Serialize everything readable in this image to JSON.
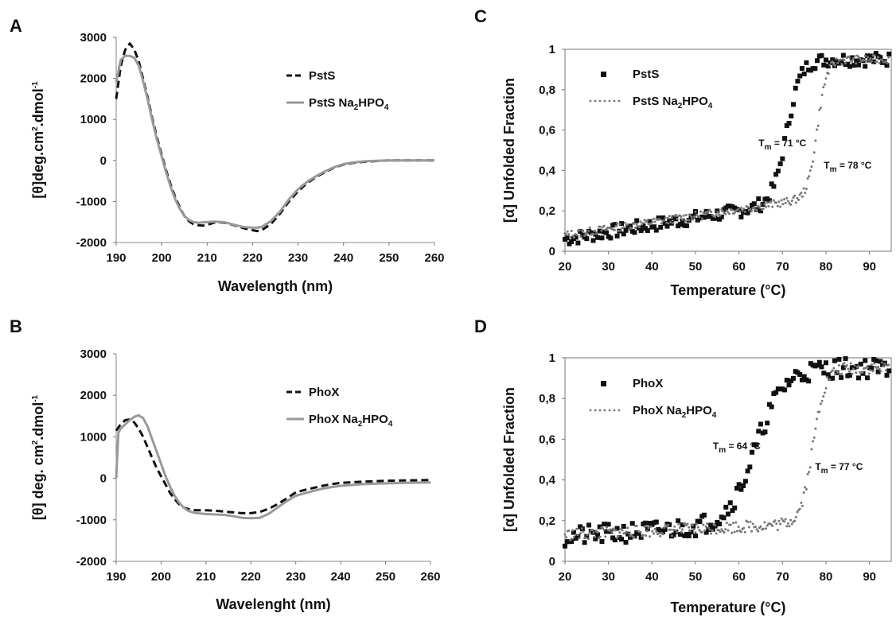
{
  "chart_data": [
    {
      "panel": "A",
      "type": "line",
      "xlabel": "Wavelength  (nm)",
      "ylabel": [
        "[θ]deg.cm",
        "2",
        ".dmol",
        "-1"
      ],
      "xlim": [
        190,
        260
      ],
      "ylim": [
        -2000,
        3000
      ],
      "xticks": [
        190,
        200,
        210,
        220,
        230,
        240,
        250,
        260
      ],
      "yticks": [
        3000,
        2000,
        1000,
        0,
        -1000,
        -2000
      ],
      "grid": false,
      "legend_position": "top-right",
      "series": [
        {
          "name": "PstS",
          "style": "dashed",
          "color": "#111111",
          "x": [
            190,
            191,
            192,
            193,
            194,
            195,
            196,
            197,
            198,
            199,
            200,
            201,
            202,
            203,
            204,
            205,
            206,
            207,
            208,
            209,
            210,
            212,
            214,
            216,
            218,
            220,
            221,
            222,
            224,
            226,
            228,
            230,
            232,
            234,
            236,
            238,
            240,
            242,
            245,
            248,
            250,
            255,
            260
          ],
          "y": [
            1500,
            2300,
            2700,
            2850,
            2700,
            2400,
            1950,
            1500,
            1000,
            550,
            150,
            -250,
            -600,
            -900,
            -1150,
            -1350,
            -1480,
            -1550,
            -1580,
            -1590,
            -1570,
            -1500,
            -1520,
            -1580,
            -1650,
            -1700,
            -1720,
            -1700,
            -1550,
            -1300,
            -1000,
            -750,
            -550,
            -400,
            -280,
            -170,
            -100,
            -60,
            -30,
            -10,
            0,
            0,
            0
          ]
        },
        {
          "name": "PstS Na",
          "name_sub": "2",
          "name_suffix": "HPO",
          "name_sub2": "4",
          "style": "solid",
          "color": "#999999",
          "x": [
            190,
            191,
            192,
            193,
            194,
            195,
            196,
            197,
            198,
            199,
            200,
            201,
            202,
            203,
            204,
            205,
            206,
            207,
            208,
            209,
            210,
            212,
            214,
            216,
            218,
            220,
            221,
            222,
            224,
            226,
            228,
            230,
            232,
            234,
            236,
            238,
            240,
            242,
            245,
            248,
            250,
            255,
            260
          ],
          "y": [
            1900,
            2450,
            2550,
            2550,
            2500,
            2300,
            1900,
            1450,
            950,
            500,
            100,
            -300,
            -650,
            -950,
            -1180,
            -1350,
            -1450,
            -1500,
            -1520,
            -1510,
            -1500,
            -1490,
            -1510,
            -1570,
            -1620,
            -1640,
            -1640,
            -1620,
            -1480,
            -1250,
            -950,
            -700,
            -520,
            -380,
            -260,
            -160,
            -90,
            -50,
            -20,
            -5,
            0,
            0,
            0
          ]
        }
      ]
    },
    {
      "panel": "B",
      "type": "line",
      "xlabel": "Wavelenght (nm)",
      "ylabel": [
        "[θ] deg. cm",
        "2",
        ".dmol",
        "-1"
      ],
      "xlim": [
        190,
        260
      ],
      "ylim": [
        -2000,
        3000
      ],
      "xticks": [
        190,
        200,
        210,
        220,
        230,
        240,
        250,
        260
      ],
      "yticks": [
        3000,
        2000,
        1000,
        0,
        -1000,
        -2000
      ],
      "grid": false,
      "legend_position": "top-right",
      "series": [
        {
          "name": "PhoX",
          "style": "dashed",
          "color": "#111111",
          "x": [
            190,
            191,
            192,
            193,
            194,
            195,
            196,
            197,
            198,
            199,
            200,
            201,
            202,
            203,
            204,
            205,
            206,
            207,
            208,
            210,
            212,
            214,
            216,
            218,
            220,
            222,
            224,
            226,
            228,
            230,
            232,
            234,
            236,
            238,
            240,
            245,
            250,
            255,
            260
          ],
          "y": [
            1150,
            1300,
            1400,
            1420,
            1350,
            1200,
            1000,
            750,
            500,
            250,
            50,
            -150,
            -350,
            -500,
            -620,
            -700,
            -740,
            -760,
            -770,
            -770,
            -780,
            -800,
            -820,
            -840,
            -840,
            -810,
            -730,
            -620,
            -480,
            -340,
            -280,
            -230,
            -180,
            -140,
            -110,
            -80,
            -60,
            -50,
            -40
          ]
        },
        {
          "name": "PhoX Na",
          "name_sub": "2",
          "name_suffix": "HPO",
          "name_sub2": "4",
          "style": "solid",
          "color": "#999999",
          "x": [
            190,
            190.5,
            191,
            192,
            193,
            194,
            195,
            196,
            197,
            198,
            199,
            200,
            201,
            202,
            203,
            204,
            205,
            206,
            207,
            208,
            210,
            212,
            214,
            216,
            218,
            220,
            222,
            224,
            226,
            228,
            230,
            232,
            234,
            236,
            238,
            240,
            245,
            250,
            255,
            260
          ],
          "y": [
            0,
            1100,
            1200,
            1300,
            1400,
            1480,
            1520,
            1450,
            1250,
            950,
            650,
            350,
            50,
            -200,
            -420,
            -580,
            -700,
            -780,
            -820,
            -840,
            -860,
            -870,
            -880,
            -910,
            -950,
            -960,
            -950,
            -850,
            -700,
            -550,
            -420,
            -360,
            -300,
            -250,
            -210,
            -180,
            -140,
            -120,
            -110,
            -100
          ]
        }
      ]
    },
    {
      "panel": "C",
      "type": "scatter",
      "xlabel": "Temperature (°C)",
      "ylabel": "[α] Unfolded Fraction",
      "xlim": [
        20,
        95
      ],
      "ylim": [
        0,
        1
      ],
      "xticks": [
        20,
        30,
        40,
        50,
        60,
        70,
        80,
        90
      ],
      "yticks": [
        "0",
        "0,2",
        "0,4",
        "0,6",
        "0,8",
        "1"
      ],
      "ytick_values": [
        0,
        0.2,
        0.4,
        0.6,
        0.8,
        1
      ],
      "grid": false,
      "legend_position": "top-left",
      "annotations": [
        {
          "label_main": "T",
          "label_sub": "m",
          "label_rest": " = 71 °C",
          "x": 64.5,
          "y": 0.52
        },
        {
          "label_main": "T",
          "label_sub": "m",
          "label_rest": " = 78 °C",
          "x": 79.5,
          "y": 0.41
        }
      ],
      "series": [
        {
          "name": "PstS",
          "marker": "square",
          "color": "#111111",
          "tm": 71,
          "start": 20,
          "step": 0.5,
          "baseline_low": 0.06,
          "slope_low": 0.0035,
          "width": 1.6,
          "noise": 0.035,
          "seed": 7
        },
        {
          "name": "PstS Na",
          "name_sub": "2",
          "name_suffix": "HPO",
          "name_sub2": "4",
          "marker": "dot",
          "color": "#777777",
          "tm": 78,
          "start": 20,
          "step": 0.3,
          "baseline_low": 0.08,
          "slope_low": 0.0032,
          "width": 1.1,
          "noise": 0.02,
          "seed": 13
        }
      ]
    },
    {
      "panel": "D",
      "type": "scatter",
      "xlabel": "Temperature (°C)",
      "ylabel": "[α] Unfolded Fraction",
      "xlim": [
        20,
        95
      ],
      "ylim": [
        0,
        1
      ],
      "xticks": [
        20,
        30,
        40,
        50,
        60,
        70,
        80,
        90
      ],
      "yticks": [
        "0",
        "0,2",
        "0,4",
        "0,6",
        "0,8",
        "1"
      ],
      "ytick_values": [
        0,
        0.2,
        0.4,
        0.6,
        0.8,
        1
      ],
      "grid": false,
      "legend_position": "top-left",
      "annotations": [
        {
          "label_main": "T",
          "label_sub": "m",
          "label_rest": " = 64 °C",
          "x": 54,
          "y": 0.55
        },
        {
          "label_main": "T",
          "label_sub": "m",
          "label_rest": " = 77 °C",
          "x": 77.5,
          "y": 0.45
        }
      ],
      "series": [
        {
          "name": "PhoX",
          "marker": "square",
          "color": "#111111",
          "tm": 64,
          "start": 20,
          "step": 0.5,
          "baseline_low": 0.12,
          "slope_low": 0.0015,
          "width": 3.2,
          "noise": 0.05,
          "seed": 21
        },
        {
          "name": "PhoX Na",
          "name_sub": "2",
          "name_suffix": "HPO",
          "name_sub2": "4",
          "marker": "dot",
          "color": "#777777",
          "tm": 77,
          "start": 20,
          "step": 0.3,
          "baseline_low": 0.13,
          "slope_low": 0.001,
          "width": 1.4,
          "noise": 0.03,
          "seed": 33
        }
      ]
    }
  ]
}
